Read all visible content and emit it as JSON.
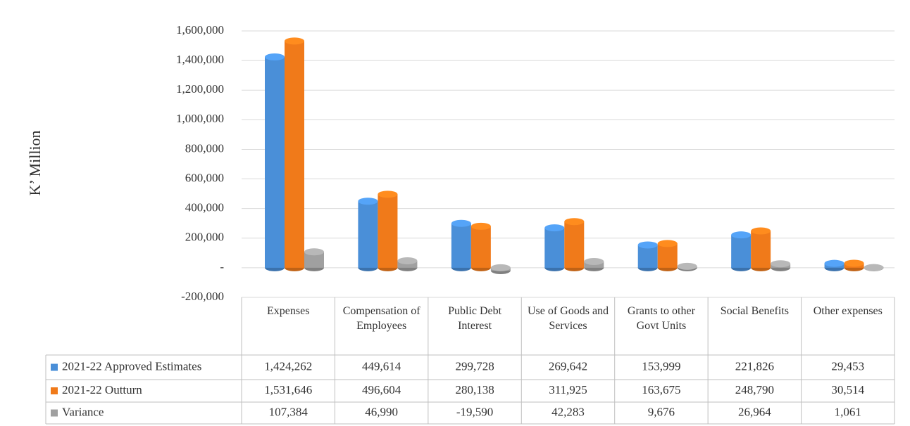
{
  "chart_data": {
    "type": "bar",
    "y_label": "K’ Million",
    "categories": [
      "Expenses",
      "Compensation of Employees",
      "Public Debt Interest",
      "Use of Goods and Services",
      "Grants to other Govt Units",
      "Social Benefits",
      "Other expenses"
    ],
    "series": [
      {
        "name": "2021-22 Approved Estimates",
        "color": "#4a8fd8",
        "values": [
          1424262,
          449614,
          299728,
          269642,
          153999,
          221826,
          29453
        ],
        "value_labels": [
          "1,424,262",
          "449,614",
          "299,728",
          "269,642",
          "153,999",
          "221,826",
          "29,453"
        ]
      },
      {
        "name": "2021-22 Outturn",
        "color": "#f07a1a",
        "values": [
          1531646,
          496604,
          280138,
          311925,
          163675,
          248790,
          30514
        ],
        "value_labels": [
          "1,531,646",
          "496,604",
          "280,138",
          "311,925",
          "163,675",
          "248,790",
          "30,514"
        ]
      },
      {
        "name": "Variance",
        "color": "#a0a0a0",
        "values": [
          107384,
          46990,
          -19590,
          42283,
          9676,
          26964,
          1061
        ],
        "value_labels": [
          "107,384",
          "46,990",
          "-19,590",
          "42,283",
          "9,676",
          "26,964",
          "1,061"
        ]
      }
    ],
    "ylim": [
      -200000,
      1600000
    ],
    "yticks": [
      {
        "value": -200000,
        "label": "-200,000"
      },
      {
        "value": 0,
        "label": "-"
      },
      {
        "value": 200000,
        "label": "200,000"
      },
      {
        "value": 400000,
        "label": "400,000"
      },
      {
        "value": 600000,
        "label": "600,000"
      },
      {
        "value": 800000,
        "label": "800,000"
      },
      {
        "value": 1000000,
        "label": "1,000,000"
      },
      {
        "value": 1200000,
        "label": "1,200,000"
      },
      {
        "value": 1400000,
        "label": "1,400,000"
      },
      {
        "value": 1600000,
        "label": "1,600,000"
      }
    ],
    "grid": true
  }
}
